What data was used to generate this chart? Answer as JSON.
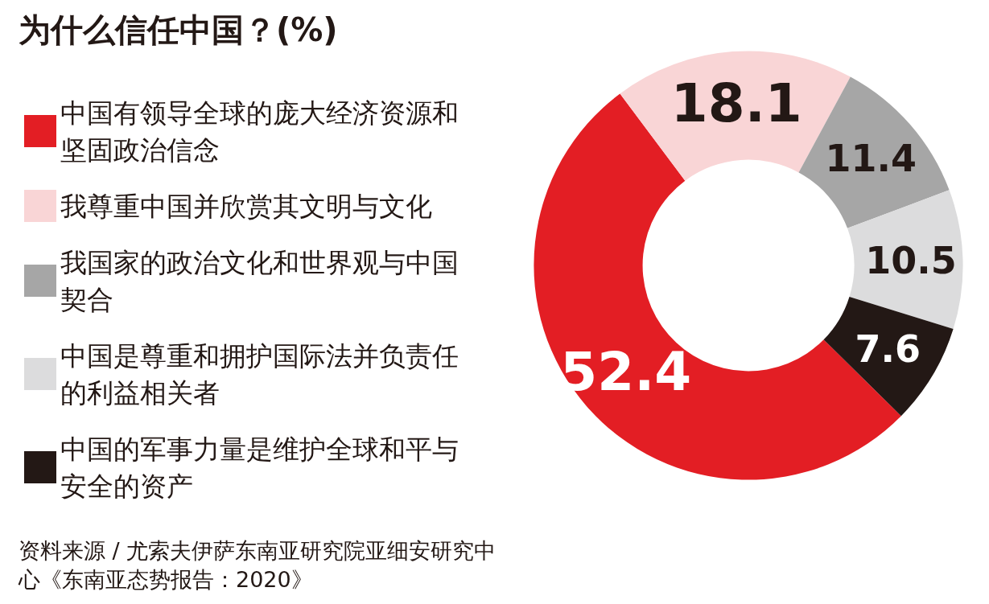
{
  "chart_data": {
    "type": "donut",
    "title": "为什么信任中国？(%)",
    "categories": [
      "中国有领导全球的庞大经济资源和坚固政治信念",
      "我尊重中国并欣赏其文明与文化",
      "我国家的政治文化和世界观与中国契合",
      "中国是尊重和拥护国际法并负责任的利益相关者",
      "中国的军事力量是维护全球和平与安全的资产"
    ],
    "values": [
      52.4,
      18.1,
      11.4,
      10.5,
      7.6
    ],
    "colors": [
      "#e31e24",
      "#f9d5d6",
      "#a6a6a6",
      "#dcdcdd",
      "#231815"
    ],
    "data_labels": true,
    "legend": "left",
    "annotations": [
      "资料来源 / 尤索夫伊萨东南亚研究院亚细安研究中心《东南亚态势报告：2020》"
    ]
  }
}
